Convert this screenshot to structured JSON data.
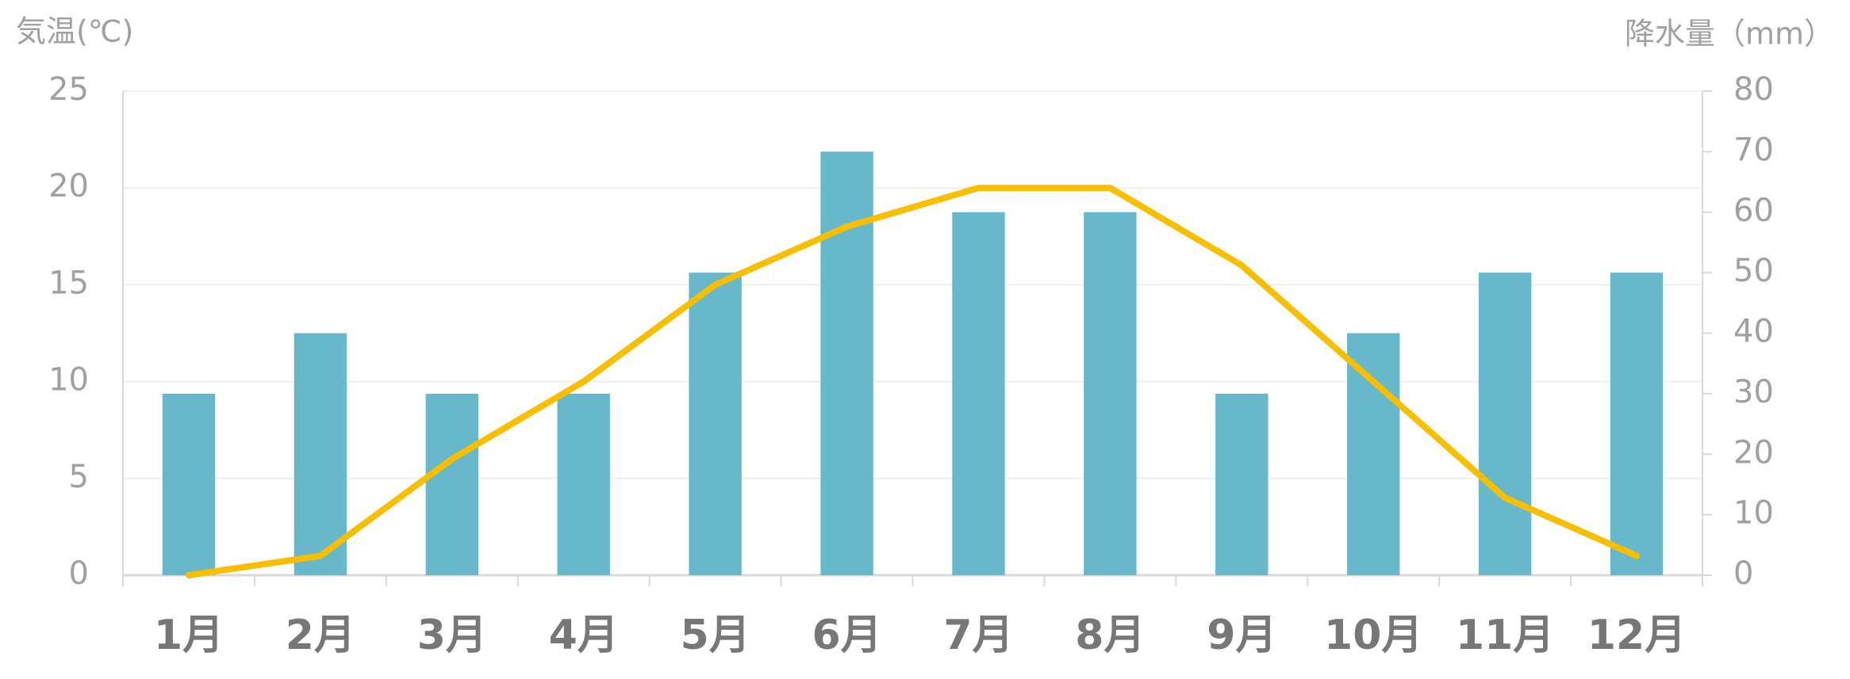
{
  "chart_data": {
    "type": "bar",
    "y_label": "気温(℃)",
    "y2_label": "降水量（mm）",
    "categories": [
      "1月",
      "2月",
      "3月",
      "4月",
      "5月",
      "6月",
      "7月",
      "8月",
      "9月",
      "10月",
      "11月",
      "12月"
    ],
    "series": [
      {
        "type": "bar",
        "axis": "y2",
        "color": "#67b8cb",
        "values": [
          30,
          40,
          30,
          30,
          50,
          70,
          60,
          60,
          30,
          40,
          50,
          50
        ]
      },
      {
        "type": "line",
        "color": "#f7bf00",
        "values": [
          0,
          1,
          6,
          10,
          15,
          18,
          20,
          20,
          16,
          10,
          4,
          1
        ]
      }
    ],
    "ylim": [
      0,
      25
    ],
    "yticks": [
      0,
      5,
      10,
      15,
      20,
      25
    ],
    "y2lim": [
      0,
      80
    ],
    "y2ticks": [
      0,
      10,
      20,
      30,
      40,
      50,
      60,
      70,
      80
    ],
    "grid": true
  }
}
